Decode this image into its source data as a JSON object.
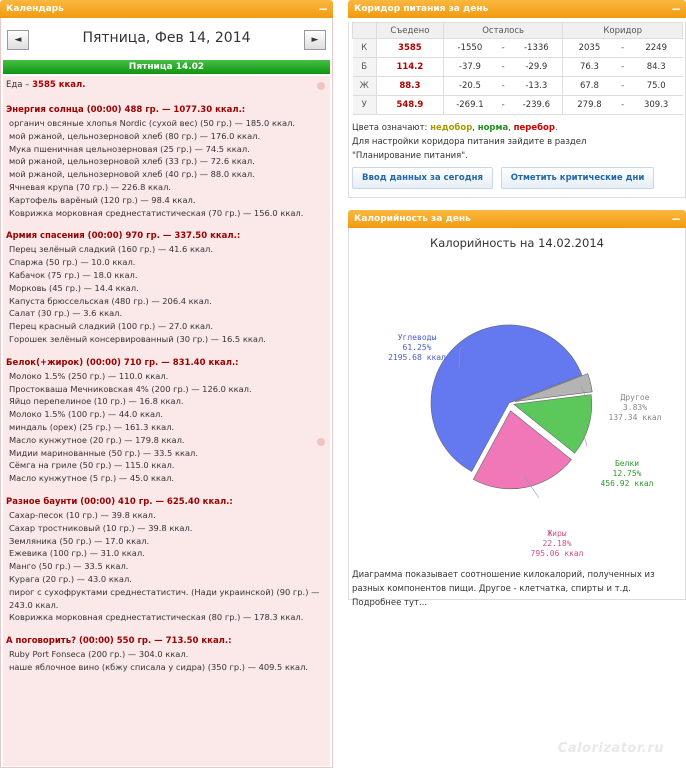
{
  "calendar": {
    "header": "Календарь",
    "minimize": "−",
    "prev": "◄",
    "next": "►",
    "date_title": "Пятница, Фев 14, 2014",
    "day_bar": "Пятница 14.02",
    "food_label": "Еда –",
    "food_total": "3585 ккал.",
    "meals": [
      {
        "title": "Энергия солнца (00:00) 488 гр. — 1077.30 ккал.:",
        "items": [
          "органич овсяные хлопья Nordic (сухой вес) (50 гр.) — 185.0 ккал.",
          "мой ржаной, цельнозерновой хлеб (80 гр.) — 176.0 ккал.",
          "Мука пшеничная цельнозерновая (25 гр.) — 74.5 ккал.",
          "мой ржаной, цельнозерновой хлеб (33 гр.) — 72.6 ккал.",
          "мой ржаной, цельнозерновой хлеб (40 гр.) — 88.0 ккал.",
          "Ячневая крупа (70 гр.) — 226.8 ккал.",
          "Картофель варёный (120 гр.) — 98.4 ккал.",
          "Коврижка морковная среднестатистическая (70 гр.) — 156.0 ккал."
        ]
      },
      {
        "title": "Армия спасения (00:00) 970 гр. — 337.50 ккал.:",
        "items": [
          "Перец зелёный сладкий (160 гр.) — 41.6 ккал.",
          "Спаржа (50 гр.) — 10.0 ккал.",
          "Кабачок (75 гр.) — 18.0 ккал.",
          "Морковь (45 гр.) — 14.4 ккал.",
          "Капуста брюссельская (480 гр.) — 206.4 ккал.",
          "Салат (30 гр.) — 3.6 ккал.",
          "Перец красный сладкий (100 гр.) — 27.0 ккал.",
          "Горошек зелёный консервированный (30 гр.) — 16.5 ккал."
        ]
      },
      {
        "title": "Белок(+жирок) (00:00) 710 гр. — 831.40 ккал.:",
        "items": [
          "Молоко 1.5% (250 гр.) — 110.0 ккал.",
          "Простокваша Мечниковская 4% (200 гр.) — 126.0 ккал.",
          "Яйцо перепелиное (10 гр.) — 16.8 ккал.",
          "Молоко 1.5% (100 гр.) — 44.0 ккал.",
          "миндаль (орех) (25 гр.) — 161.3 ккал.",
          "Масло кунжутное (20 гр.) — 179.8 ккал.",
          "Мидии маринованные (50 гр.) — 33.5 ккал.",
          "Сёмга на гриле (50 гр.) — 115.0 ккал.",
          "Масло кунжутное (5 гр.) — 45.0 ккал."
        ]
      },
      {
        "title": "Разное баунти (00:00) 410 гр. — 625.40 ккал.:",
        "items": [
          "Сахар-песок (10 гр.) — 39.8 ккал.",
          "Сахар тростниковый (10 гр.) — 39.8 ккал.",
          "Земляника (50 гр.) — 17.0 ккал.",
          "Ежевика (100 гр.) — 31.0 ккал.",
          "Манго (50 гр.) — 33.5 ккал.",
          "Курага (20 гр.) — 43.0 ккал.",
          "пирог с сухофруктами среднестатистич. (Нади украинской) (90 гр.) —",
          "243.0 ккал.",
          "Коврижка морковная среднестатистическая (80 гр.) — 178.3 ккал."
        ]
      },
      {
        "title": "А поговорить? (00:00) 550 гр. — 713.50 ккал.:",
        "items": [
          "Ruby Port Fonseca (200 гр.) — 304.0 ккал.",
          "наше яблочное вино (кбжу списала у сидра) (350 гр.) — 409.5 ккал."
        ]
      }
    ]
  },
  "corridor": {
    "header": "Коридор питания за день",
    "minimize": "−",
    "columns": [
      "Съедено",
      "Осталось",
      "Коридор"
    ],
    "rows": [
      {
        "label": "К",
        "eaten": "3585",
        "left_from": "-1550",
        "left_to": "-1336",
        "corr_from": "2035",
        "corr_to": "2249"
      },
      {
        "label": "Б",
        "eaten": "114.2",
        "left_from": "-37.9",
        "left_to": "-29.9",
        "corr_from": "76.3",
        "corr_to": "84.3"
      },
      {
        "label": "Ж",
        "eaten": "88.3",
        "left_from": "-20.5",
        "left_to": "-13.3",
        "corr_from": "67.8",
        "corr_to": "75.0"
      },
      {
        "label": "У",
        "eaten": "548.9",
        "left_from": "-269.1",
        "left_to": "-239.6",
        "corr_from": "279.8",
        "corr_to": "309.3"
      }
    ],
    "dash": "-",
    "legend_prefix": "Цвета означают:",
    "legend_low": "недобор",
    "legend_norm": "норма",
    "legend_over": "перебор",
    "legend_comma": ",",
    "legend_dot": ".",
    "hint_line1": "Для настройки коридора питания зайдите в раздел",
    "hint_line2": "\"Планирование питания\".",
    "btn_enter": "Ввод данных за сегодня",
    "btn_mark": "Отметить критические дни"
  },
  "calories": {
    "header": "Калорийность за день",
    "minimize": "−",
    "description": "Диаграмма показывает соотношение килокалорий, полученных из разных компонентов пищи. Другое - клетчатка, спирты и т.д.",
    "more": "Подробнее тут..."
  },
  "chart_data": {
    "type": "pie",
    "title": "Калорийность на 14.02.2014",
    "slices": [
      {
        "name": "Углеводы",
        "percent": 61.25,
        "percent_label": "61.25%",
        "kcal": 2195.68,
        "value_label": "2195.68 ккал",
        "color": "#6478f0"
      },
      {
        "name": "Жиры",
        "percent": 22.18,
        "percent_label": "22.18%",
        "kcal": 795.06,
        "value_label": "795.06 ккал",
        "color": "#f078b8"
      },
      {
        "name": "Белки",
        "percent": 12.75,
        "percent_label": "12.75%",
        "kcal": 456.92,
        "value_label": "456.92 ккал",
        "color": "#5cc85c"
      },
      {
        "name": "Другое",
        "percent": 3.83,
        "percent_label": "3.83%",
        "kcal": 137.34,
        "value_label": "137.34 ккал",
        "color": "#b4b4b4"
      }
    ]
  },
  "watermark": "Calorizator.ru"
}
